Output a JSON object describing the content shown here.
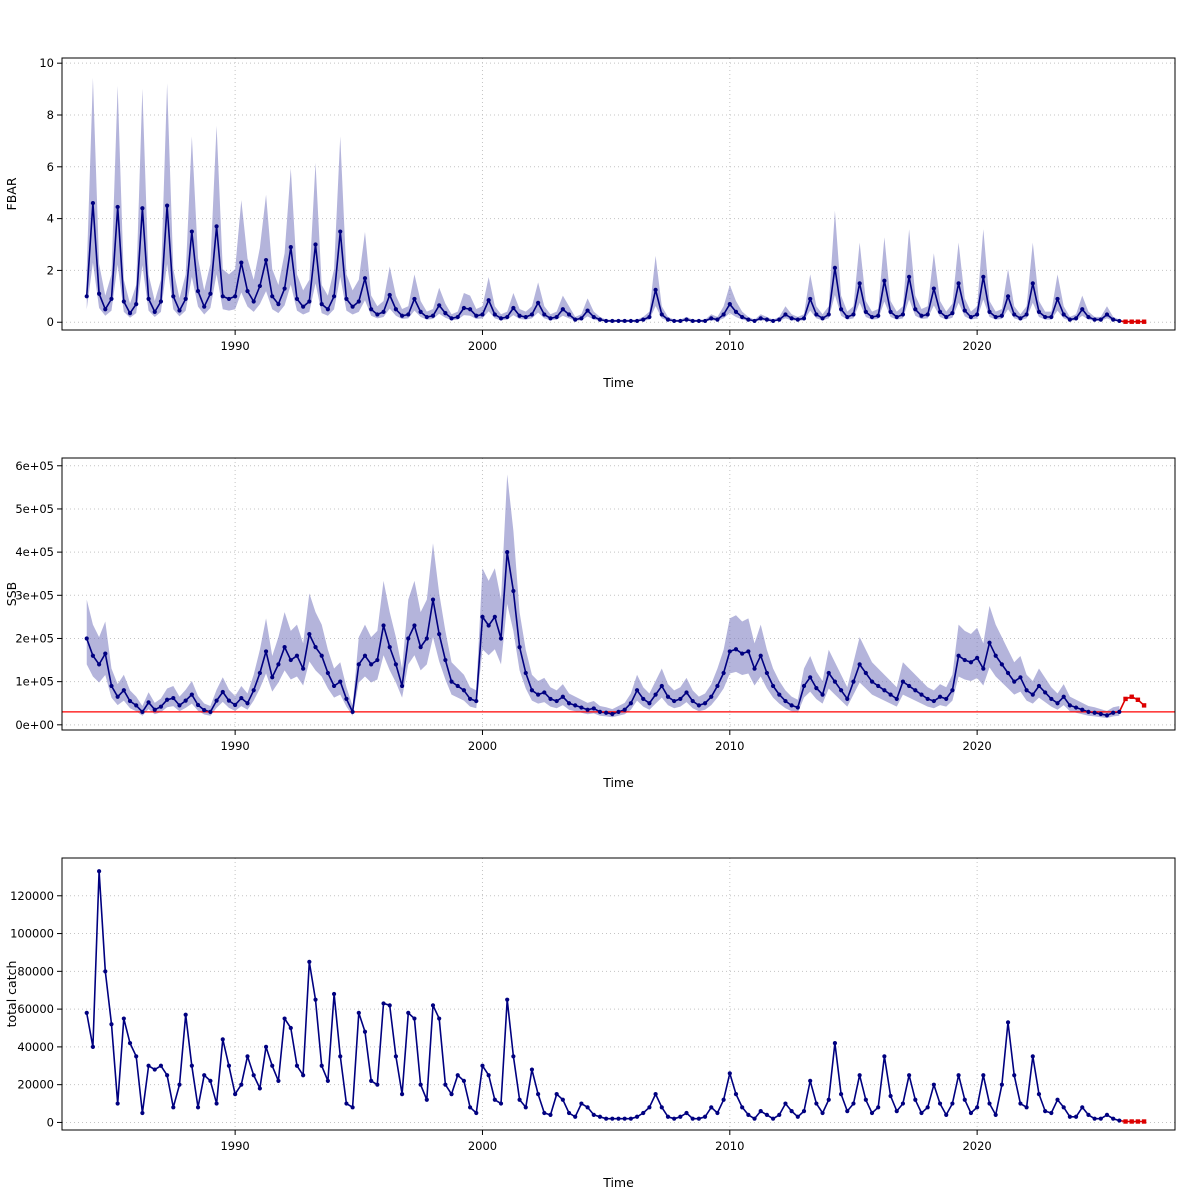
{
  "colors": {
    "line": "#000080",
    "band": "rgba(118,118,190,0.55)",
    "forecast": "#DD0000",
    "reference_line": "#FF0000",
    "grid": "#C4C4C4",
    "axis": "#000000",
    "background": "#FFFFFF"
  },
  "chart_data": [
    {
      "type": "line",
      "title": "",
      "ylabel": "FBAR",
      "xlabel": "Time",
      "x_start": 1984,
      "x_step": 0.25,
      "xlim": [
        1983,
        2028
      ],
      "ylim": [
        -0.3,
        10.2
      ],
      "xticks": [
        1990,
        2000,
        2010,
        2020
      ],
      "xtick_labels": [
        "1990",
        "2000",
        "2010",
        "2020"
      ],
      "yticks": [
        0,
        2,
        4,
        6,
        8,
        10
      ],
      "ytick_labels": [
        "0",
        "2",
        "4",
        "6",
        "8",
        "10"
      ],
      "grid": "dotted",
      "legend": "none",
      "band": {
        "type": "multiplicative-confidence",
        "lo_factor": 0.5,
        "hi_factor": 2.05
      },
      "forecast_start_index": 168,
      "values": [
        1.0,
        4.6,
        1.1,
        0.5,
        0.9,
        4.45,
        0.8,
        0.35,
        0.7,
        4.4,
        0.9,
        0.4,
        0.8,
        4.5,
        1.0,
        0.45,
        0.9,
        3.5,
        1.2,
        0.6,
        1.1,
        3.7,
        1.0,
        0.9,
        1.0,
        2.3,
        1.2,
        0.8,
        1.4,
        2.4,
        1.0,
        0.7,
        1.3,
        2.9,
        0.9,
        0.6,
        0.8,
        3.0,
        0.7,
        0.5,
        1.0,
        3.5,
        0.9,
        0.6,
        0.8,
        1.7,
        0.5,
        0.3,
        0.4,
        1.05,
        0.5,
        0.25,
        0.3,
        0.9,
        0.4,
        0.2,
        0.25,
        0.65,
        0.35,
        0.15,
        0.2,
        0.55,
        0.5,
        0.25,
        0.3,
        0.85,
        0.3,
        0.15,
        0.2,
        0.55,
        0.25,
        0.2,
        0.3,
        0.75,
        0.3,
        0.15,
        0.2,
        0.5,
        0.3,
        0.1,
        0.15,
        0.45,
        0.2,
        0.1,
        0.05,
        0.05,
        0.05,
        0.05,
        0.05,
        0.05,
        0.1,
        0.2,
        1.25,
        0.3,
        0.1,
        0.05,
        0.05,
        0.1,
        0.05,
        0.05,
        0.05,
        0.15,
        0.1,
        0.3,
        0.7,
        0.4,
        0.2,
        0.1,
        0.05,
        0.15,
        0.1,
        0.05,
        0.1,
        0.3,
        0.15,
        0.1,
        0.15,
        0.9,
        0.3,
        0.15,
        0.3,
        2.1,
        0.5,
        0.2,
        0.3,
        1.5,
        0.4,
        0.2,
        0.25,
        1.6,
        0.4,
        0.2,
        0.3,
        1.75,
        0.5,
        0.25,
        0.3,
        1.3,
        0.4,
        0.2,
        0.35,
        1.5,
        0.45,
        0.2,
        0.3,
        1.75,
        0.4,
        0.2,
        0.25,
        1.0,
        0.3,
        0.15,
        0.3,
        1.5,
        0.4,
        0.2,
        0.2,
        0.9,
        0.3,
        0.1,
        0.15,
        0.5,
        0.2,
        0.1,
        0.1,
        0.3,
        0.1,
        0.05,
        0.02,
        0.02,
        0.02,
        0.02
      ]
    },
    {
      "type": "line",
      "title": "",
      "ylabel": "SSB",
      "xlabel": "Time",
      "x_start": 1984,
      "x_step": 0.25,
      "xlim": [
        1983,
        2028
      ],
      "ylim": [
        -12000,
        618000
      ],
      "xticks": [
        1990,
        2000,
        2010,
        2020
      ],
      "xtick_labels": [
        "1990",
        "2000",
        "2010",
        "2020"
      ],
      "yticks": [
        0,
        100000,
        200000,
        300000,
        400000,
        500000,
        600000
      ],
      "ytick_labels": [
        "0e+00",
        "1e+05",
        "2e+05",
        "3e+05",
        "4e+05",
        "5e+05",
        "6e+05"
      ],
      "grid": "dotted",
      "legend": "none",
      "band": {
        "type": "multiplicative-confidence",
        "lo_factor": 0.7,
        "hi_factor": 1.45
      },
      "reference_line": 30000,
      "forecast_start_index": 168,
      "values": [
        200000,
        160000,
        140000,
        165000,
        90000,
        65000,
        80000,
        55000,
        45000,
        30000,
        52000,
        35000,
        42000,
        58000,
        62000,
        45000,
        56000,
        70000,
        46000,
        34000,
        30000,
        56000,
        76000,
        56000,
        46000,
        62000,
        50000,
        80000,
        120000,
        170000,
        110000,
        140000,
        180000,
        150000,
        160000,
        130000,
        210000,
        180000,
        160000,
        120000,
        90000,
        100000,
        60000,
        30000,
        140000,
        160000,
        140000,
        150000,
        230000,
        180000,
        140000,
        90000,
        200000,
        230000,
        180000,
        200000,
        290000,
        210000,
        150000,
        100000,
        90000,
        80000,
        60000,
        55000,
        250000,
        230000,
        250000,
        200000,
        400000,
        310000,
        180000,
        120000,
        80000,
        70000,
        75000,
        60000,
        55000,
        65000,
        50000,
        45000,
        40000,
        35000,
        38000,
        30000,
        28000,
        25000,
        30000,
        35000,
        50000,
        80000,
        60000,
        50000,
        70000,
        90000,
        65000,
        55000,
        60000,
        75000,
        55000,
        45000,
        50000,
        65000,
        90000,
        120000,
        170000,
        175000,
        165000,
        170000,
        130000,
        160000,
        120000,
        90000,
        70000,
        55000,
        45000,
        40000,
        90000,
        110000,
        85000,
        70000,
        120000,
        100000,
        80000,
        60000,
        100000,
        140000,
        120000,
        100000,
        90000,
        80000,
        70000,
        60000,
        100000,
        90000,
        80000,
        70000,
        60000,
        55000,
        65000,
        60000,
        80000,
        160000,
        150000,
        145000,
        155000,
        130000,
        190000,
        160000,
        140000,
        120000,
        100000,
        110000,
        80000,
        70000,
        90000,
        75000,
        60000,
        50000,
        65000,
        45000,
        40000,
        35000,
        30000,
        28000,
        25000,
        22000,
        28000,
        30000,
        60000,
        65000,
        58000,
        45000
      ]
    },
    {
      "type": "line",
      "title": "",
      "ylabel": "total catch",
      "xlabel": "Time",
      "x_start": 1984,
      "x_step": 0.25,
      "xlim": [
        1983,
        2028
      ],
      "ylim": [
        -4000,
        140000
      ],
      "xticks": [
        1990,
        2000,
        2010,
        2020
      ],
      "xtick_labels": [
        "1990",
        "2000",
        "2010",
        "2020"
      ],
      "yticks": [
        0,
        20000,
        40000,
        60000,
        80000,
        100000,
        120000
      ],
      "ytick_labels": [
        "0",
        "20000",
        "40000",
        "60000",
        "80000",
        "100000",
        "120000"
      ],
      "grid": "dotted",
      "legend": "none",
      "band": null,
      "forecast_start_index": 168,
      "values": [
        58000,
        40000,
        133000,
        80000,
        52000,
        10000,
        55000,
        42000,
        35000,
        5000,
        30000,
        28000,
        30000,
        25000,
        8000,
        20000,
        57000,
        30000,
        8000,
        25000,
        22000,
        10000,
        44000,
        30000,
        15000,
        20000,
        35000,
        25000,
        18000,
        40000,
        30000,
        22000,
        55000,
        50000,
        30000,
        25000,
        85000,
        65000,
        30000,
        22000,
        68000,
        35000,
        10000,
        8000,
        58000,
        48000,
        22000,
        20000,
        63000,
        62000,
        35000,
        15000,
        58000,
        55000,
        20000,
        12000,
        62000,
        55000,
        20000,
        15000,
        25000,
        22000,
        8000,
        5000,
        30000,
        25000,
        12000,
        10000,
        65000,
        35000,
        12000,
        8000,
        28000,
        15000,
        5000,
        4000,
        15000,
        12000,
        5000,
        3000,
        10000,
        8000,
        4000,
        3000,
        2000,
        2000,
        2000,
        2000,
        2000,
        3000,
        5000,
        8000,
        15000,
        8000,
        3000,
        2000,
        3000,
        5000,
        2000,
        2000,
        3000,
        8000,
        5000,
        12000,
        26000,
        15000,
        8000,
        4000,
        2000,
        6000,
        4000,
        2000,
        4000,
        10000,
        6000,
        3000,
        6000,
        22000,
        10000,
        5000,
        12000,
        42000,
        15000,
        6000,
        10000,
        25000,
        12000,
        5000,
        8000,
        35000,
        14000,
        6000,
        10000,
        25000,
        12000,
        5000,
        8000,
        20000,
        10000,
        4000,
        10000,
        25000,
        12000,
        5000,
        8000,
        25000,
        10000,
        4000,
        20000,
        53000,
        25000,
        10000,
        8000,
        35000,
        15000,
        6000,
        5000,
        12000,
        8000,
        3000,
        3000,
        8000,
        4000,
        2000,
        2000,
        4000,
        2000,
        1000,
        500,
        500,
        500,
        500
      ]
    }
  ]
}
